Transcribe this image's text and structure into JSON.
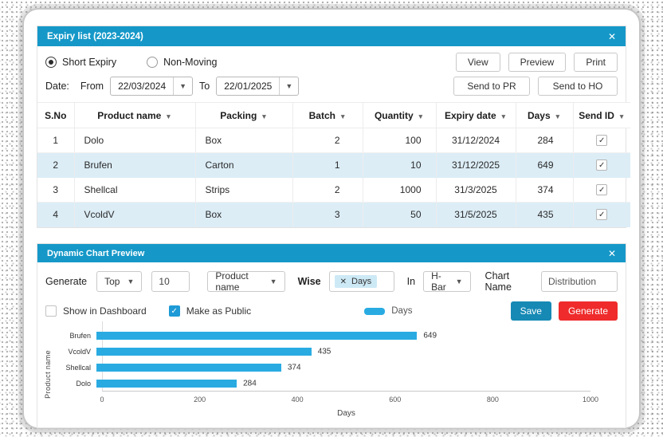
{
  "colors": {
    "panel_header": "#1598C8",
    "bar": "#29ABE2",
    "row_alt": "#DCEDF6",
    "tag_bg": "#CDE9F6",
    "checkbox_checked": "#1E9AD6",
    "save_button": "#1689B5",
    "generate_button": "#EF2B2B"
  },
  "expiry_panel": {
    "title": "Expiry list (2023-2024)",
    "close": "✕",
    "radios": [
      {
        "label": "Short Expiry",
        "selected": true
      },
      {
        "label": "Non-Moving",
        "selected": false
      }
    ],
    "buttons": {
      "view": "View",
      "preview": "Preview",
      "print": "Print",
      "send_pr": "Send to PR",
      "send_ho": "Send to HO"
    },
    "date": {
      "label": "Date:",
      "from_label": "From",
      "from_value": "22/03/2024",
      "to_label": "To",
      "to_value": "22/01/2025"
    },
    "table": {
      "columns": [
        {
          "label": "S.No",
          "sortable": false
        },
        {
          "label": "Product name",
          "sortable": true
        },
        {
          "label": "Packing",
          "sortable": true
        },
        {
          "label": "Batch",
          "sortable": true
        },
        {
          "label": "Quantity",
          "sortable": true
        },
        {
          "label": "Expiry date",
          "sortable": true
        },
        {
          "label": "Days",
          "sortable": true
        },
        {
          "label": "Send ID",
          "sortable": true
        }
      ],
      "rows": [
        {
          "sno": "1",
          "product": "Dolo",
          "packing": "Box",
          "batch": "2",
          "quantity": "100",
          "expiry": "31/12/2024",
          "days": "284",
          "send_id": true
        },
        {
          "sno": "2",
          "product": "Brufen",
          "packing": "Carton",
          "batch": "1",
          "quantity": "10",
          "expiry": "31/12/2025",
          "days": "649",
          "send_id": true
        },
        {
          "sno": "3",
          "product": "Shellcal",
          "packing": "Strips",
          "batch": "2",
          "quantity": "1000",
          "expiry": "31/3/2025",
          "days": "374",
          "send_id": true
        },
        {
          "sno": "4",
          "product": "VcoldV",
          "packing": "Box",
          "batch": "3",
          "quantity": "50",
          "expiry": "31/5/2025",
          "days": "435",
          "send_id": true
        }
      ]
    }
  },
  "chart_panel": {
    "title": "Dynamic Chart Preview",
    "close": "✕",
    "generate_label": "Generate",
    "top_select": "Top",
    "count_value": "10",
    "field_select": "Product name",
    "wise_label": "Wise",
    "wise_tag": "Days",
    "wise_tag_remove": "✕",
    "in_label": "In",
    "type_select": "H-Bar",
    "chart_name_label": "Chart Name",
    "chart_name_value": "Distribution",
    "show_in_dashboard": {
      "label": "Show in Dashboard",
      "checked": false
    },
    "make_as_public": {
      "label": "Make as Public",
      "checked": true
    },
    "legend_label": "Days",
    "save_button": "Save",
    "generate_button": "Generate"
  },
  "chart_data": {
    "type": "bar",
    "orientation": "horizontal",
    "title": "Distribution",
    "categories": [
      "Brufen",
      "VcoldV",
      "Shellcal",
      "Dolo"
    ],
    "values": [
      649,
      435,
      374,
      284
    ],
    "series": [
      {
        "name": "Days",
        "values": [
          649,
          435,
          374,
          284
        ]
      }
    ],
    "xlabel": "Days",
    "ylabel": "Product name",
    "xlim": [
      0,
      1000
    ],
    "xticks": [
      0,
      200,
      400,
      600,
      800,
      1000
    ],
    "grid": false,
    "value_labels": true,
    "legend_position": "top-center",
    "bar_color": "#29ABE2"
  }
}
